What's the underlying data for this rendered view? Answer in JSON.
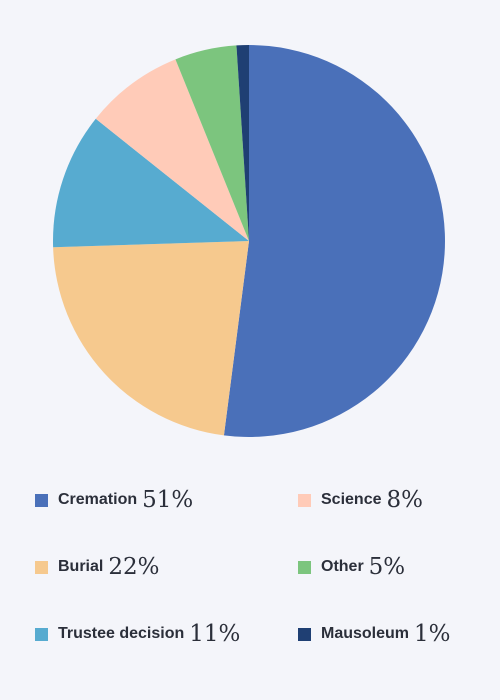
{
  "chart_data": {
    "type": "pie",
    "slices": [
      {
        "label": "Cremation",
        "value": 51,
        "display": "51%",
        "color": "#4a70b9"
      },
      {
        "label": "Burial",
        "value": 22,
        "display": "22%",
        "color": "#f6c98e"
      },
      {
        "label": "Trustee decision",
        "value": 11,
        "display": "11%",
        "color": "#57abd0"
      },
      {
        "label": "Science",
        "value": 8,
        "display": "8%",
        "color": "#ffcbb8"
      },
      {
        "label": "Other",
        "value": 5,
        "display": "5%",
        "color": "#7cc57e"
      },
      {
        "label": "Mausoleum",
        "value": 1,
        "display": "1%",
        "color": "#1f3f73"
      }
    ],
    "legend_position": "bottom"
  }
}
